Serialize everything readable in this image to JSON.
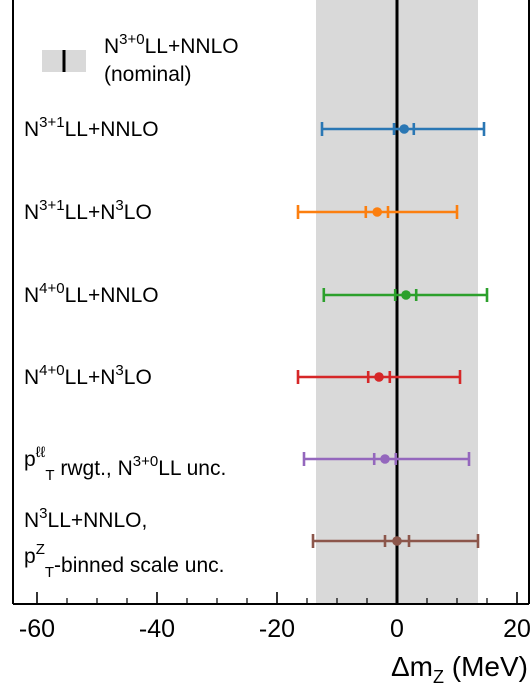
{
  "chart_data": {
    "type": "scatter",
    "xlabel": "Δm",
    "xlabel_sub": "Z",
    "xlabel_unit": "(MeV)",
    "xlim": [
      -64,
      22
    ],
    "xticks": [
      -60,
      -40,
      -20,
      0,
      20
    ],
    "xtick_labels": [
      "-60",
      "-40",
      "-20",
      "0",
      "20"
    ],
    "reference": {
      "value": 0,
      "band": [
        -13.5,
        13.5
      ],
      "band_color": "#d9d9d9",
      "line_color": "#000000",
      "legend_label_base": "N",
      "legend_label_sup": "3+0",
      "legend_label_tail": "LL+NNLO",
      "legend_label_line2": "(nominal)"
    },
    "entries": [
      {
        "label_parts": [
          [
            "N",
            ""
          ],
          [
            "3+1",
            "sup"
          ],
          [
            "LL+NNLO",
            ""
          ]
        ],
        "line2": null,
        "value": 1.2,
        "inner": [
          -0.5,
          2.8
        ],
        "outer": [
          -12.5,
          14.5
        ],
        "color": "#2a77b4"
      },
      {
        "label_parts": [
          [
            "N",
            ""
          ],
          [
            "3+1",
            "sup"
          ],
          [
            "LL+N",
            ""
          ],
          [
            "3",
            "sup"
          ],
          [
            "LO",
            ""
          ]
        ],
        "line2": null,
        "value": -3.3,
        "inner": [
          -5.2,
          -1.5
        ],
        "outer": [
          -16.5,
          10.0
        ],
        "color": "#fc7f0f"
      },
      {
        "label_parts": [
          [
            "N",
            ""
          ],
          [
            "4+0",
            "sup"
          ],
          [
            "LL+NNLO",
            ""
          ]
        ],
        "line2": null,
        "value": 1.5,
        "inner": [
          -0.3,
          3.2
        ],
        "outer": [
          -12.2,
          15.0
        ],
        "color": "#2ca02c"
      },
      {
        "label_parts": [
          [
            "N",
            ""
          ],
          [
            "4+0",
            "sup"
          ],
          [
            "LL+N",
            ""
          ],
          [
            "3",
            "sup"
          ],
          [
            "LO",
            ""
          ]
        ],
        "line2": null,
        "value": -3.0,
        "inner": [
          -4.8,
          -1.2
        ],
        "outer": [
          -16.5,
          10.5
        ],
        "color": "#d62728"
      },
      {
        "label_parts": [
          [
            "p",
            ""
          ],
          [
            "ℓℓ",
            "sup"
          ],
          [
            "T",
            "sub"
          ],
          [
            " rwgt., N",
            ""
          ],
          [
            "3+0",
            "sup"
          ],
          [
            "LL unc.",
            ""
          ]
        ],
        "line2": null,
        "value": -2.0,
        "inner": [
          -3.8,
          -0.2
        ],
        "outer": [
          -15.5,
          12.0
        ],
        "color": "#9467bd"
      },
      {
        "label_parts": [
          [
            "N",
            ""
          ],
          [
            "3",
            "sup"
          ],
          [
            "LL+NNLO,",
            ""
          ]
        ],
        "line2": [
          [
            "p",
            ""
          ],
          [
            "Z",
            "sup"
          ],
          [
            "T",
            "sub"
          ],
          [
            "-binned scale unc.",
            ""
          ]
        ],
        "value": 0.0,
        "inner": [
          -2.0,
          2.0
        ],
        "outer": [
          -14.0,
          13.5
        ],
        "color": "#8c564b"
      }
    ]
  }
}
